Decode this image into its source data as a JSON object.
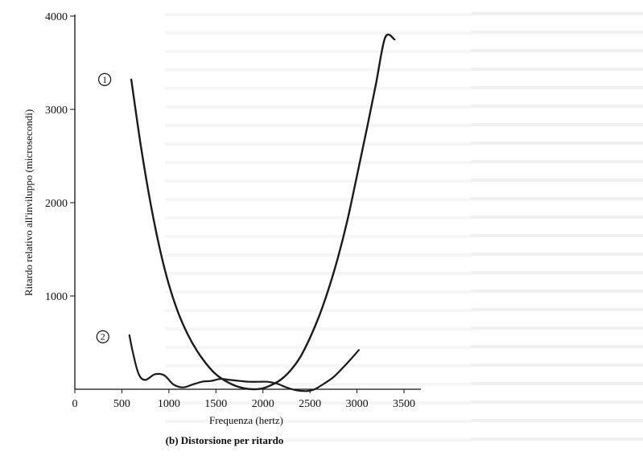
{
  "chart_data": {
    "type": "line",
    "title": "",
    "caption": "(b) Distorsione per ritardo",
    "xlabel": "Frequenza (hertz)",
    "ylabel": "Ritardo relativo all'inviluppo (microsecondi)",
    "xlim": [
      0,
      3500
    ],
    "ylim": [
      0,
      4000
    ],
    "x_ticks": [
      "0",
      "500",
      "1000",
      "1500",
      "2000",
      "2500",
      "3000",
      "3500"
    ],
    "y_ticks": [
      "1000",
      "2000",
      "3000",
      "4000"
    ],
    "grid": false,
    "series": [
      {
        "name": "①",
        "x": [
          600,
          700,
          800,
          900,
          1000,
          1100,
          1200,
          1300,
          1400,
          1500,
          1600,
          1700,
          1800,
          1900,
          2000,
          2100,
          2200,
          2300,
          2400,
          2500,
          2600,
          2700,
          2800,
          2900,
          3000,
          3100,
          3200,
          3300,
          3400
        ],
        "y": [
          3320,
          2620,
          2020,
          1520,
          1120,
          820,
          590,
          410,
          270,
          160,
          90,
          40,
          10,
          0,
          10,
          50,
          110,
          210,
          350,
          550,
          790,
          1080,
          1420,
          1820,
          2290,
          2770,
          3260,
          3770,
          3750
        ]
      },
      {
        "name": "②",
        "x": [
          580,
          620,
          680,
          750,
          850,
          950,
          1050,
          1150,
          1250,
          1350,
          1450,
          1550,
          1650,
          1750,
          1850,
          1950,
          2050,
          2150,
          2250,
          2350,
          2450,
          2500,
          2550,
          2650,
          2750,
          2850,
          2950,
          3020
        ],
        "y": [
          580,
          380,
          160,
          100,
          160,
          150,
          50,
          20,
          50,
          80,
          90,
          110,
          100,
          90,
          80,
          80,
          80,
          60,
          20,
          -10,
          -20,
          -15,
          0,
          60,
          130,
          230,
          340,
          420
        ]
      }
    ]
  }
}
